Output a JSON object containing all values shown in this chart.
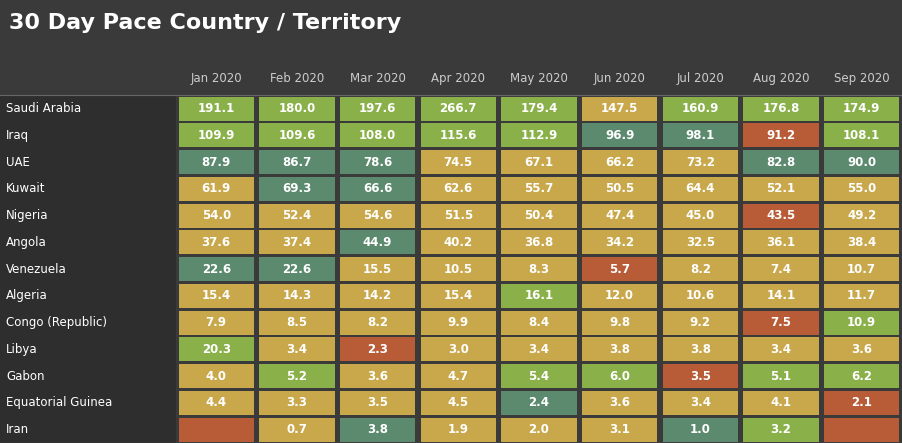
{
  "title": "30 Day Pace Country / Territory",
  "columns": [
    "Jan 2020",
    "Feb 2020",
    "Mar 2020",
    "Apr 2020",
    "May 2020",
    "Jun 2020",
    "Jul 2020",
    "Aug 2020",
    "Sep 2020"
  ],
  "rows": [
    "Saudi Arabia",
    "Iraq",
    "UAE",
    "Kuwait",
    "Nigeria",
    "Angola",
    "Venezuela",
    "Algeria",
    "Congo (Republic)",
    "Libya",
    "Gabon",
    "Equatorial Guinea",
    "Iran"
  ],
  "values": [
    [
      191.1,
      180.0,
      197.6,
      266.7,
      179.4,
      147.5,
      160.9,
      176.8,
      174.9
    ],
    [
      109.9,
      109.6,
      108.0,
      115.6,
      112.9,
      96.9,
      98.1,
      91.2,
      108.1
    ],
    [
      87.9,
      86.7,
      78.6,
      74.5,
      67.1,
      66.2,
      73.2,
      82.8,
      90.0
    ],
    [
      61.9,
      69.3,
      66.6,
      62.6,
      55.7,
      50.5,
      64.4,
      52.1,
      55.0
    ],
    [
      54.0,
      52.4,
      54.6,
      51.5,
      50.4,
      47.4,
      45.0,
      43.5,
      49.2
    ],
    [
      37.6,
      37.4,
      44.9,
      40.2,
      36.8,
      34.2,
      32.5,
      36.1,
      38.4
    ],
    [
      22.6,
      22.6,
      15.5,
      10.5,
      8.3,
      5.7,
      8.2,
      7.4,
      10.7
    ],
    [
      15.4,
      14.3,
      14.2,
      15.4,
      16.1,
      12.0,
      10.6,
      14.1,
      11.7
    ],
    [
      7.9,
      8.5,
      8.2,
      9.9,
      8.4,
      9.8,
      9.2,
      7.5,
      10.9
    ],
    [
      20.3,
      3.4,
      2.3,
      3.0,
      3.4,
      3.8,
      3.8,
      3.4,
      3.6
    ],
    [
      4.0,
      5.2,
      3.6,
      4.7,
      5.4,
      6.0,
      3.5,
      5.1,
      6.2
    ],
    [
      4.4,
      3.3,
      3.5,
      4.5,
      2.4,
      3.6,
      3.4,
      4.1,
      2.1
    ],
    [
      null,
      0.7,
      3.8,
      1.9,
      2.0,
      3.1,
      1.0,
      3.2,
      null
    ]
  ],
  "cell_colors": [
    [
      "#8ab04a",
      "#8ab04a",
      "#8ab04a",
      "#8ab04a",
      "#8ab04a",
      "#c8a84b",
      "#8ab04a",
      "#8ab04a",
      "#8ab04a"
    ],
    [
      "#8ab04a",
      "#8ab04a",
      "#8ab04a",
      "#8ab04a",
      "#8ab04a",
      "#5b8a6e",
      "#5b8a6e",
      "#b85c38",
      "#8ab04a"
    ],
    [
      "#5b8a6e",
      "#5b8a6e",
      "#5b8a6e",
      "#c8a84b",
      "#c8a84b",
      "#c8a84b",
      "#c8a84b",
      "#5b8a6e",
      "#5b8a6e"
    ],
    [
      "#c8a84b",
      "#5b8a6e",
      "#5b8a6e",
      "#c8a84b",
      "#c8a84b",
      "#c8a84b",
      "#c8a84b",
      "#c8a84b",
      "#c8a84b"
    ],
    [
      "#c8a84b",
      "#c8a84b",
      "#c8a84b",
      "#c8a84b",
      "#c8a84b",
      "#c8a84b",
      "#c8a84b",
      "#b85c38",
      "#c8a84b"
    ],
    [
      "#c8a84b",
      "#c8a84b",
      "#5b8a6e",
      "#c8a84b",
      "#c8a84b",
      "#c8a84b",
      "#c8a84b",
      "#c8a84b",
      "#c8a84b"
    ],
    [
      "#5b8a6e",
      "#5b8a6e",
      "#c8a84b",
      "#c8a84b",
      "#c8a84b",
      "#b85c38",
      "#c8a84b",
      "#c8a84b",
      "#c8a84b"
    ],
    [
      "#c8a84b",
      "#c8a84b",
      "#c8a84b",
      "#c8a84b",
      "#8ab04a",
      "#c8a84b",
      "#c8a84b",
      "#c8a84b",
      "#c8a84b"
    ],
    [
      "#c8a84b",
      "#c8a84b",
      "#c8a84b",
      "#c8a84b",
      "#c8a84b",
      "#c8a84b",
      "#c8a84b",
      "#b85c38",
      "#8ab04a"
    ],
    [
      "#8ab04a",
      "#c8a84b",
      "#b85c38",
      "#c8a84b",
      "#c8a84b",
      "#c8a84b",
      "#c8a84b",
      "#c8a84b",
      "#c8a84b"
    ],
    [
      "#c8a84b",
      "#8ab04a",
      "#c8a84b",
      "#c8a84b",
      "#8ab04a",
      "#8ab04a",
      "#b85c38",
      "#8ab04a",
      "#8ab04a"
    ],
    [
      "#c8a84b",
      "#c8a84b",
      "#c8a84b",
      "#c8a84b",
      "#5b8a6e",
      "#c8a84b",
      "#c8a84b",
      "#c8a84b",
      "#b85c38"
    ],
    [
      "#b85c38",
      "#c8a84b",
      "#5b8a6e",
      "#c8a84b",
      "#c8a84b",
      "#c8a84b",
      "#5b8a6e",
      "#8ab04a",
      "#b85c38"
    ]
  ],
  "bg_color": "#3a3a3a",
  "row_label_bg": "#2e2e2e",
  "text_color": "#ffffff",
  "header_text_color": "#cccccc",
  "title_color": "#ffffff",
  "title_fontsize": 16,
  "header_fontsize": 8.5,
  "cell_fontsize": 8.5,
  "row_label_fontsize": 8.5
}
